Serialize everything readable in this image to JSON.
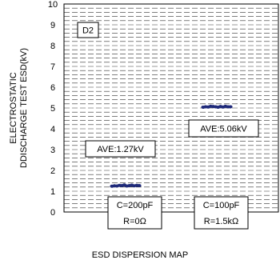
{
  "chart_data": {
    "type": "scatter",
    "title": "ESD DISPERSION MAP",
    "ylabel": [
      "ELECTROSTATIC",
      "DDISCHARGE TEST ESD(kV)"
    ],
    "ylim": [
      0,
      10
    ],
    "yticks": [
      "0",
      "1",
      "2",
      "3",
      "4",
      "5",
      "6",
      "7",
      "8",
      "9",
      "10"
    ],
    "grid": true,
    "grid_style": "dashed horizontal",
    "tag": "D2",
    "categories": [
      [
        "C=200pF",
        "R=0Ω"
      ],
      [
        "C=100pF",
        "R=1.5kΩ"
      ]
    ],
    "series": [
      {
        "values": [
          1.24,
          1.26,
          1.25,
          1.28,
          1.27,
          1.3,
          1.25,
          1.27,
          1.29,
          1.26,
          1.28,
          1.27
        ],
        "average_label": "AVE:1.27kV"
      },
      {
        "values": [
          5.04,
          5.06,
          5.05,
          5.08,
          5.07,
          5.06,
          5.04,
          5.07,
          5.05,
          5.08,
          5.06,
          5.06
        ],
        "average_label": "AVE:5.06kV"
      }
    ],
    "marker_color": "#1f2a7a"
  }
}
